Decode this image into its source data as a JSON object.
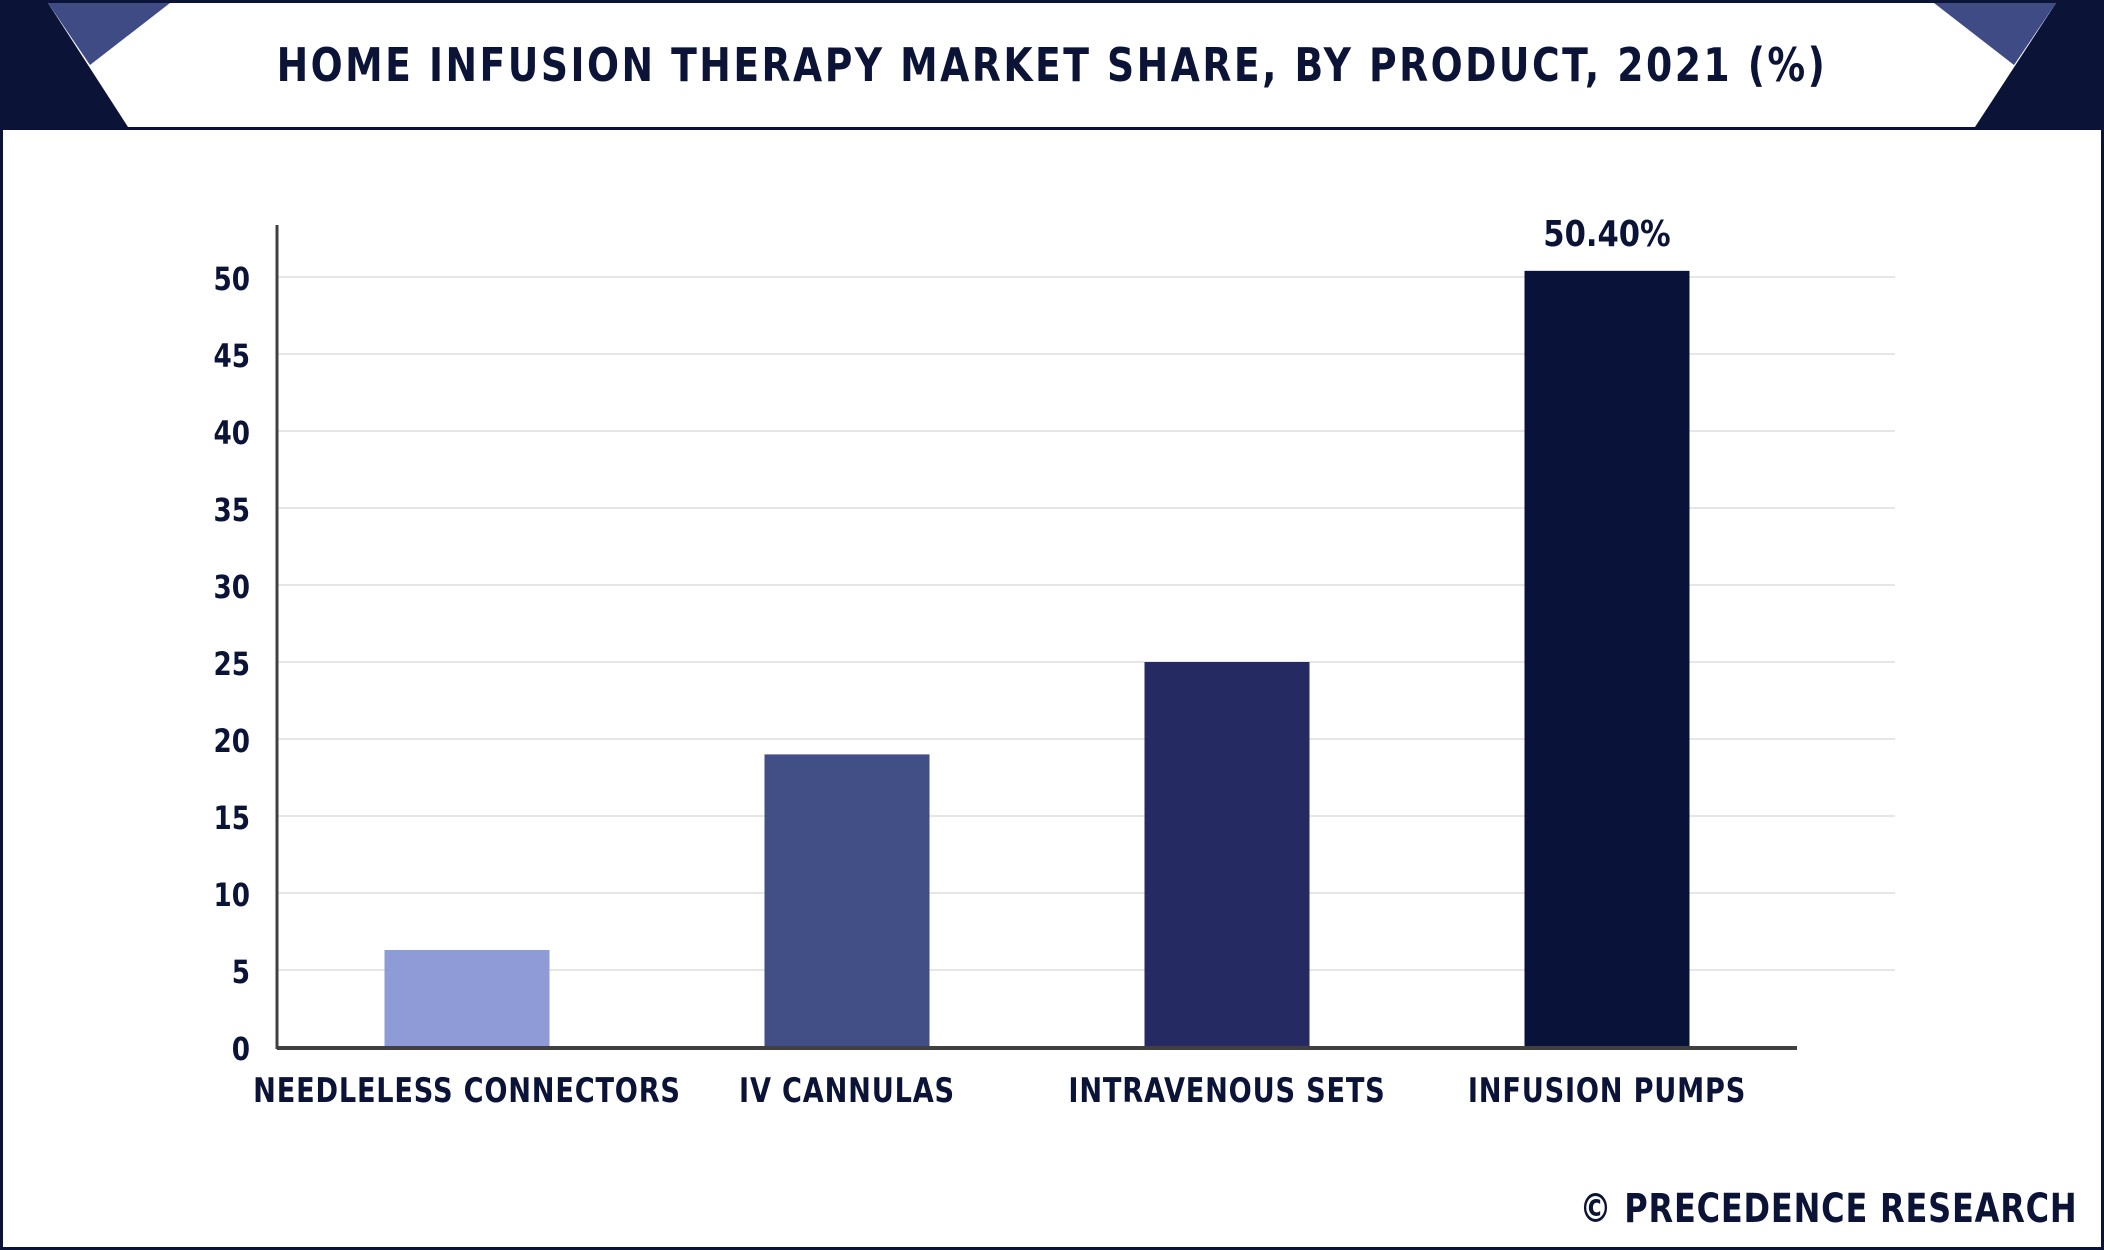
{
  "header": {
    "title": "HOME INFUSION THERAPY MARKET SHARE, BY PRODUCT, 2021 (%)"
  },
  "footer": {
    "copyright_symbol": "©",
    "brand": "PRECEDENCE RESEARCH"
  },
  "colors": {
    "frame": "#0b1437",
    "accent": "#3f4b85",
    "grid": "#e6e6e6",
    "axis": "#404040"
  },
  "chart_data": {
    "type": "bar",
    "title": "HOME INFUSION THERAPY MARKET SHARE, BY PRODUCT, 2021 (%)",
    "xlabel": "",
    "ylabel": "",
    "categories": [
      "NEEDLELESS CONNECTORS",
      "IV CANNULAS",
      "INTRAVENOUS SETS",
      "INFUSION PUMPS"
    ],
    "values": [
      6.3,
      19.0,
      25.0,
      50.4
    ],
    "bar_colors": [
      "#8e9bd6",
      "#424e86",
      "#252a63",
      "#09133a"
    ],
    "data_labels": [
      "",
      "",
      "",
      "50.40%"
    ],
    "ylim": [
      0,
      50
    ],
    "yticks": [
      0,
      5,
      10,
      15,
      20,
      25,
      30,
      35,
      40,
      45,
      50
    ],
    "grid": true,
    "legend": "none"
  }
}
